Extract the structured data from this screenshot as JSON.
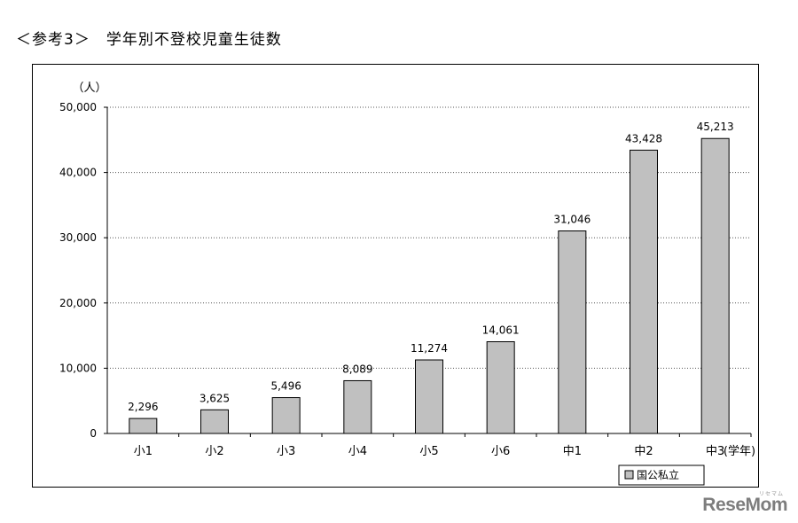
{
  "page_heading": "＜参考3＞　学年別不登校児童生徒数",
  "watermark": {
    "brand": "ReseMom",
    "kana": "リセマム"
  },
  "chart_data": {
    "type": "bar",
    "y_unit": "（人）",
    "x_unit": "(学年)",
    "categories": [
      "小1",
      "小2",
      "小3",
      "小4",
      "小5",
      "小6",
      "中1",
      "中2",
      "中3"
    ],
    "series": [
      {
        "name": "国公私立",
        "values": [
          2296,
          3625,
          5496,
          8089,
          11274,
          14061,
          31046,
          43428,
          45213
        ],
        "value_labels": [
          "2,296",
          "3,625",
          "5,496",
          "8,089",
          "11,274",
          "14,061",
          "31,046",
          "43,428",
          "45,213"
        ]
      }
    ],
    "ylim": [
      0,
      50000
    ],
    "y_ticks": [
      0,
      10000,
      20000,
      30000,
      40000,
      50000
    ],
    "y_tick_labels": [
      "0",
      "10,000",
      "20,000",
      "30,000",
      "40,000",
      "50,000"
    ],
    "grid": "horizontal-dotted",
    "legend_position": "bottom-right",
    "colors": {
      "bar_fill": "#c0c0c0",
      "bar_stroke": "#000000",
      "grid": "#555555"
    }
  }
}
